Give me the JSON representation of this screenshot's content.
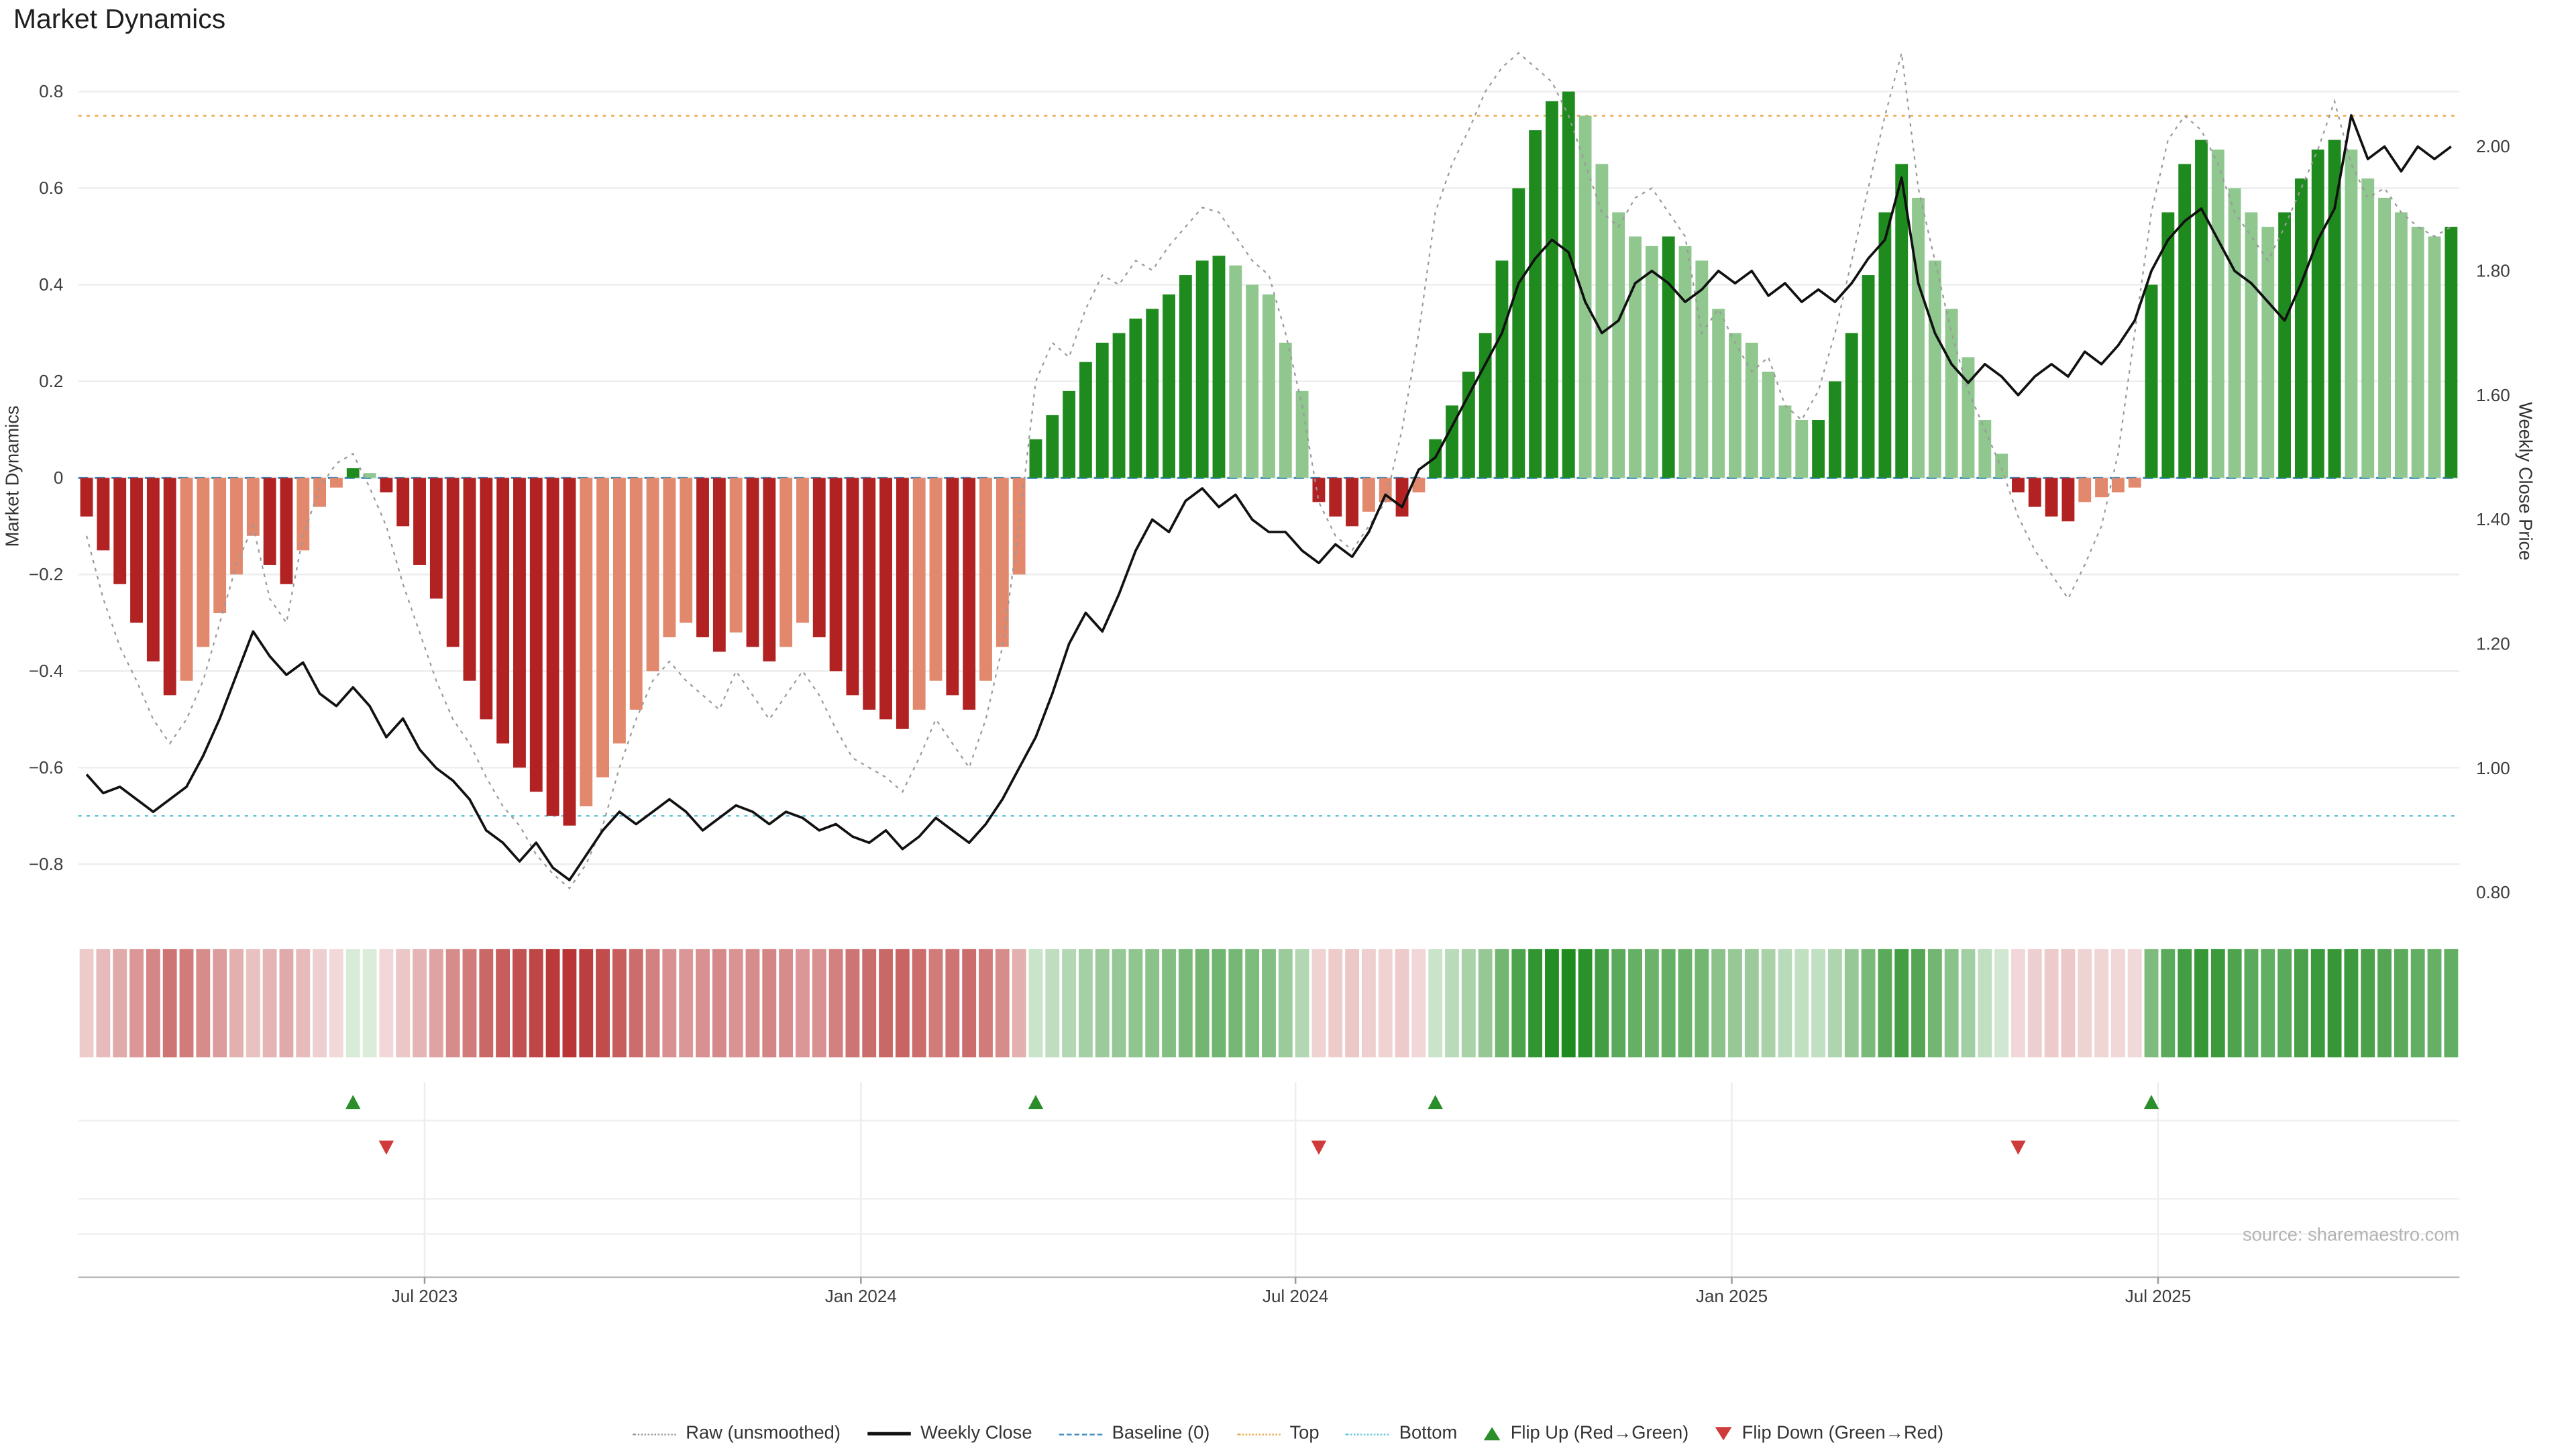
{
  "title": "Market Dynamics",
  "source": "source: sharemaestro.com",
  "axes": {
    "left_title": "Market Dynamics",
    "right_title": "Weekly Close Price",
    "left_ticks": [
      0.8,
      0.6,
      0.4,
      0.2,
      0.0,
      -0.2,
      -0.4,
      -0.6,
      -0.8
    ],
    "right_ticks": [
      2.0,
      1.8,
      1.6,
      1.4,
      1.2,
      1.0,
      0.8
    ],
    "x_ticks": [
      {
        "label": "Jul 2023",
        "week": 20.8
      },
      {
        "label": "Jan 2024",
        "week": 47.0
      },
      {
        "label": "Jul 2024",
        "week": 73.1
      },
      {
        "label": "Jan 2025",
        "week": 99.3
      },
      {
        "label": "Jul 2025",
        "week": 124.9
      }
    ]
  },
  "chart_data": {
    "type": "bar",
    "title": "Market Dynamics",
    "ylabel_left": "Market Dynamics",
    "ylabel_right": "Weekly Close Price",
    "ylim_left": [
      -0.9,
      0.89
    ],
    "ylim_right": [
      0.72,
      2.13
    ],
    "n_weeks": 143,
    "baseline": 0,
    "top": 0.75,
    "bottom": -0.7,
    "dynamics": [
      -0.08,
      -0.15,
      -0.22,
      -0.3,
      -0.38,
      -0.45,
      -0.42,
      -0.35,
      -0.28,
      -0.2,
      -0.12,
      -0.18,
      -0.22,
      -0.15,
      -0.06,
      -0.02,
      0.02,
      0.01,
      -0.03,
      -0.1,
      -0.18,
      -0.25,
      -0.35,
      -0.42,
      -0.5,
      -0.55,
      -0.6,
      -0.65,
      -0.7,
      -0.72,
      -0.68,
      -0.62,
      -0.55,
      -0.48,
      -0.4,
      -0.33,
      -0.3,
      -0.33,
      -0.36,
      -0.32,
      -0.35,
      -0.38,
      -0.35,
      -0.3,
      -0.33,
      -0.4,
      -0.45,
      -0.48,
      -0.5,
      -0.52,
      -0.48,
      -0.42,
      -0.45,
      -0.48,
      -0.42,
      -0.35,
      -0.2,
      0.08,
      0.13,
      0.18,
      0.24,
      0.28,
      0.3,
      0.33,
      0.35,
      0.38,
      0.42,
      0.45,
      0.46,
      0.44,
      0.4,
      0.38,
      0.28,
      0.18,
      -0.05,
      -0.08,
      -0.1,
      -0.07,
      -0.05,
      -0.08,
      -0.03,
      0.08,
      0.15,
      0.22,
      0.3,
      0.45,
      0.6,
      0.72,
      0.78,
      0.8,
      0.75,
      0.65,
      0.55,
      0.5,
      0.48,
      0.5,
      0.48,
      0.45,
      0.35,
      0.3,
      0.28,
      0.22,
      0.15,
      0.12,
      0.12,
      0.2,
      0.3,
      0.42,
      0.55,
      0.65,
      0.58,
      0.45,
      0.35,
      0.25,
      0.12,
      0.05,
      -0.03,
      -0.06,
      -0.08,
      -0.09,
      -0.05,
      -0.04,
      -0.03,
      -0.02,
      0.4,
      0.55,
      0.65,
      0.7,
      0.68,
      0.6,
      0.55,
      0.52,
      0.55,
      0.62,
      0.68,
      0.7,
      0.68,
      0.62,
      0.58,
      0.55,
      0.52,
      0.5,
      0.52
    ],
    "raw": [
      -0.12,
      -0.25,
      -0.35,
      -0.42,
      -0.5,
      -0.55,
      -0.5,
      -0.42,
      -0.3,
      -0.18,
      -0.1,
      -0.25,
      -0.3,
      -0.12,
      -0.02,
      0.03,
      0.05,
      -0.02,
      -0.1,
      -0.22,
      -0.32,
      -0.42,
      -0.5,
      -0.55,
      -0.62,
      -0.68,
      -0.72,
      -0.78,
      -0.82,
      -0.85,
      -0.8,
      -0.72,
      -0.6,
      -0.5,
      -0.42,
      -0.38,
      -0.42,
      -0.45,
      -0.48,
      -0.4,
      -0.45,
      -0.5,
      -0.45,
      -0.4,
      -0.45,
      -0.52,
      -0.58,
      -0.6,
      -0.62,
      -0.65,
      -0.58,
      -0.5,
      -0.55,
      -0.6,
      -0.5,
      -0.35,
      -0.1,
      0.2,
      0.28,
      0.25,
      0.35,
      0.42,
      0.4,
      0.45,
      0.43,
      0.48,
      0.52,
      0.56,
      0.55,
      0.5,
      0.45,
      0.42,
      0.3,
      0.15,
      -0.05,
      -0.12,
      -0.15,
      -0.1,
      -0.05,
      0.1,
      0.3,
      0.55,
      0.65,
      0.72,
      0.8,
      0.85,
      0.88,
      0.85,
      0.82,
      0.75,
      0.65,
      0.55,
      0.52,
      0.58,
      0.6,
      0.55,
      0.5,
      0.3,
      0.35,
      0.28,
      0.22,
      0.25,
      0.15,
      0.12,
      0.18,
      0.3,
      0.45,
      0.6,
      0.75,
      0.88,
      0.6,
      0.45,
      0.3,
      0.18,
      0.1,
      0.02,
      -0.08,
      -0.15,
      -0.2,
      -0.25,
      -0.18,
      -0.1,
      0.05,
      0.3,
      0.55,
      0.7,
      0.75,
      0.72,
      0.65,
      0.55,
      0.5,
      0.45,
      0.52,
      0.6,
      0.68,
      0.78,
      0.65,
      0.58,
      0.6,
      0.55,
      0.52,
      0.5,
      0.52
    ],
    "weekly_close": [
      0.99,
      0.96,
      0.97,
      0.95,
      0.93,
      0.95,
      0.97,
      1.02,
      1.08,
      1.15,
      1.22,
      1.18,
      1.15,
      1.17,
      1.12,
      1.1,
      1.13,
      1.1,
      1.05,
      1.08,
      1.03,
      1.0,
      0.98,
      0.95,
      0.9,
      0.88,
      0.85,
      0.88,
      0.84,
      0.82,
      0.86,
      0.9,
      0.93,
      0.91,
      0.93,
      0.95,
      0.93,
      0.9,
      0.92,
      0.94,
      0.93,
      0.91,
      0.93,
      0.92,
      0.9,
      0.91,
      0.89,
      0.88,
      0.9,
      0.87,
      0.89,
      0.92,
      0.9,
      0.88,
      0.91,
      0.95,
      1.0,
      1.05,
      1.12,
      1.2,
      1.25,
      1.22,
      1.28,
      1.35,
      1.4,
      1.38,
      1.43,
      1.45,
      1.42,
      1.44,
      1.4,
      1.38,
      1.38,
      1.35,
      1.33,
      1.36,
      1.34,
      1.38,
      1.44,
      1.42,
      1.48,
      1.5,
      1.55,
      1.6,
      1.65,
      1.7,
      1.78,
      1.82,
      1.85,
      1.83,
      1.75,
      1.7,
      1.72,
      1.78,
      1.8,
      1.78,
      1.75,
      1.77,
      1.8,
      1.78,
      1.8,
      1.76,
      1.78,
      1.75,
      1.77,
      1.75,
      1.78,
      1.82,
      1.85,
      1.95,
      1.78,
      1.7,
      1.65,
      1.62,
      1.65,
      1.63,
      1.6,
      1.63,
      1.65,
      1.63,
      1.67,
      1.65,
      1.68,
      1.72,
      1.8,
      1.85,
      1.88,
      1.9,
      1.85,
      1.8,
      1.78,
      1.75,
      1.72,
      1.78,
      1.85,
      1.9,
      2.05,
      1.98,
      2.0,
      1.96,
      2.0,
      1.98,
      2.0
    ],
    "flip_up_weeks": [
      16,
      57,
      81,
      124
    ],
    "flip_down_weeks": [
      18,
      74,
      116
    ]
  },
  "legend": [
    {
      "label": "Raw (unsmoothed)",
      "type": "dotted",
      "color": "#9a9a9a",
      "icon": "raw-line-icon"
    },
    {
      "label": "Weekly Close",
      "type": "solid",
      "color": "#111111",
      "icon": "weekly-close-line-icon"
    },
    {
      "label": "Baseline (0)",
      "type": "dashed",
      "color": "#3b8bbf",
      "icon": "baseline-line-icon"
    },
    {
      "label": "Top",
      "type": "dotted",
      "color": "#e8a84a",
      "icon": "top-line-icon"
    },
    {
      "label": "Bottom",
      "type": "dotted",
      "color": "#62c6d8",
      "icon": "bottom-line-icon"
    },
    {
      "label": "Flip Up (Red→Green)",
      "type": "tri-up",
      "color": "#2a8f2a",
      "icon": "flip-up-triangle-icon"
    },
    {
      "label": "Flip Down (Green→Red)",
      "type": "tri-down",
      "color": "#cf3a3a",
      "icon": "flip-down-triangle-icon"
    }
  ],
  "colors": {
    "bar_dark_red": "#b22222",
    "bar_light_red": "#e2886c",
    "bar_dark_green": "#1f8b1f",
    "bar_light_green": "#8fc78f",
    "raw": "#9a9a9a",
    "close": "#111111",
    "baseline": "#3b8bbf",
    "top": "#e8a84a",
    "bottom": "#62c6d8",
    "flip_up": "#2a8f2a",
    "flip_down": "#cf3a3a",
    "heat_red": "178,34,34",
    "heat_green": "31,139,31",
    "grid": "#ededed",
    "axis_line": "#bbbbbb",
    "tick_text": "#3c3c3c"
  }
}
